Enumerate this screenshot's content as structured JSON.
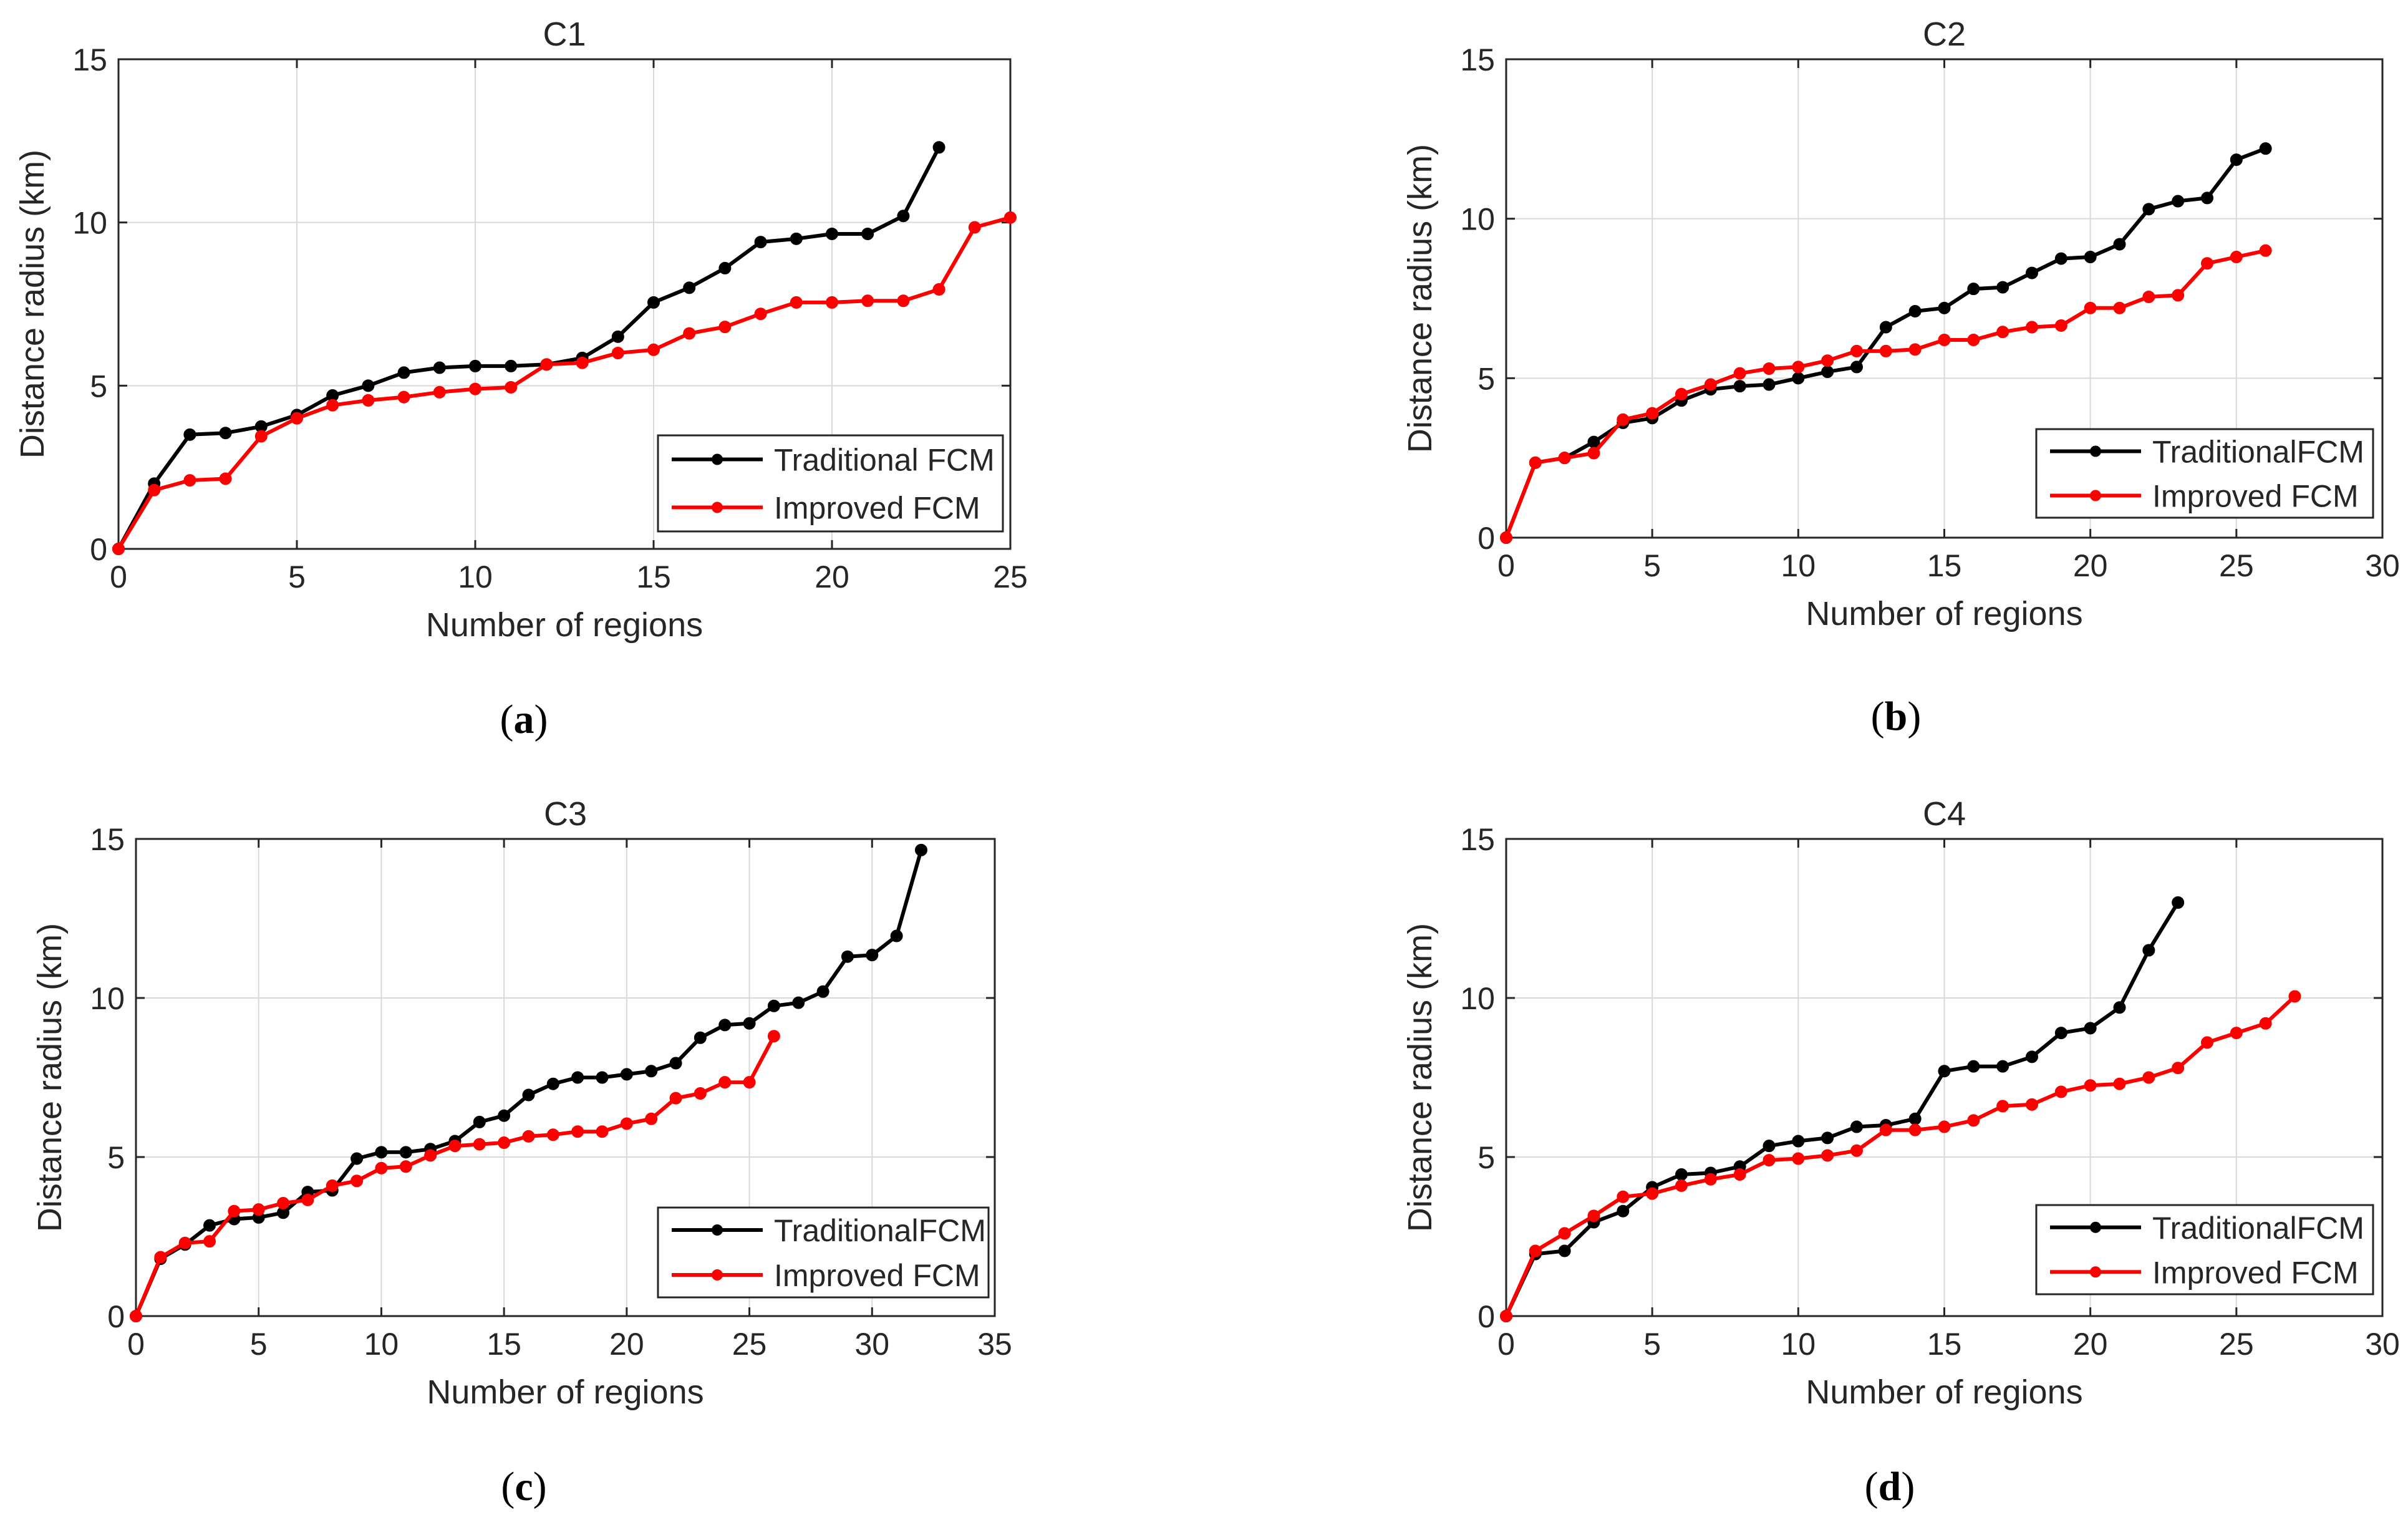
{
  "colors": {
    "traditional": "#000000",
    "improved": "#ff0000",
    "grid": "#d9d9d9",
    "axis": "#262626"
  },
  "chart_data": [
    {
      "type": "line",
      "title": "C1",
      "caption_letter": "a",
      "xlabel": "Number of regions",
      "ylabel": "Distance radius (km)",
      "xlim": [
        0,
        25
      ],
      "ylim": [
        0,
        15
      ],
      "xticks": [
        "0",
        "5",
        "10",
        "15",
        "20",
        "25"
      ],
      "yticks": [
        "0",
        "5",
        "10",
        "15"
      ],
      "grid": true,
      "legend_position": "bottom-right",
      "series": [
        {
          "name": "Traditional FCM",
          "color": "#000000",
          "x": [
            0,
            1,
            2,
            3,
            4,
            5,
            6,
            7,
            8,
            9,
            10,
            11,
            12,
            13,
            14,
            15,
            16,
            17,
            18,
            19,
            20,
            21,
            22,
            23
          ],
          "y": [
            0,
            2.0,
            3.5,
            3.55,
            3.75,
            4.1,
            4.7,
            5.0,
            5.4,
            5.55,
            5.6,
            5.6,
            5.65,
            5.85,
            6.5,
            7.55,
            8.0,
            8.6,
            9.4,
            9.5,
            9.65,
            9.65,
            10.2,
            12.3
          ]
        },
        {
          "name": "Improved FCM",
          "color": "#ff0000",
          "x": [
            0,
            1,
            2,
            3,
            4,
            5,
            6,
            7,
            8,
            9,
            10,
            11,
            12,
            13,
            14,
            15,
            16,
            17,
            18,
            19,
            20,
            21,
            22,
            23,
            24,
            25
          ],
          "y": [
            0,
            1.8,
            2.1,
            2.15,
            3.45,
            4.0,
            4.4,
            4.55,
            4.65,
            4.8,
            4.9,
            4.95,
            5.65,
            5.7,
            6.0,
            6.1,
            6.6,
            6.8,
            7.2,
            7.55,
            7.55,
            7.6,
            7.6,
            7.95,
            9.85,
            10.15
          ]
        }
      ]
    },
    {
      "type": "line",
      "title": "C2",
      "caption_letter": "b",
      "xlabel": "Number of regions",
      "ylabel": "Distance radius (km)",
      "xlim": [
        0,
        30
      ],
      "ylim": [
        0,
        15
      ],
      "xticks": [
        "0",
        "5",
        "10",
        "15",
        "20",
        "25",
        "30"
      ],
      "yticks": [
        "0",
        "5",
        "10",
        "15"
      ],
      "grid": true,
      "legend_position": "bottom-right",
      "series": [
        {
          "name": "TraditionalFCM",
          "color": "#000000",
          "x": [
            0,
            1,
            2,
            3,
            4,
            5,
            6,
            7,
            8,
            9,
            10,
            11,
            12,
            13,
            14,
            15,
            16,
            17,
            18,
            19,
            20,
            21,
            22,
            23,
            24,
            25,
            26
          ],
          "y": [
            0,
            2.35,
            2.5,
            3.0,
            3.6,
            3.75,
            4.3,
            4.65,
            4.75,
            4.8,
            5.0,
            5.2,
            5.35,
            6.6,
            7.1,
            7.2,
            7.8,
            7.85,
            8.3,
            8.75,
            8.8,
            9.2,
            10.3,
            10.55,
            10.65,
            11.85,
            12.2
          ]
        },
        {
          "name": "Improved FCM",
          "color": "#ff0000",
          "x": [
            0,
            1,
            2,
            3,
            4,
            5,
            6,
            7,
            8,
            9,
            10,
            11,
            12,
            13,
            14,
            15,
            16,
            17,
            18,
            19,
            20,
            21,
            22,
            23,
            24,
            25,
            26
          ],
          "y": [
            0,
            2.35,
            2.5,
            2.65,
            3.7,
            3.9,
            4.5,
            4.8,
            5.15,
            5.3,
            5.35,
            5.55,
            5.85,
            5.85,
            5.9,
            6.2,
            6.2,
            6.45,
            6.6,
            6.65,
            7.2,
            7.2,
            7.55,
            7.6,
            8.6,
            8.8,
            9.0
          ]
        }
      ]
    },
    {
      "type": "line",
      "title": "C3",
      "caption_letter": "c",
      "xlabel": "Number of regions",
      "ylabel": "Distance radius (km)",
      "xlim": [
        0,
        35
      ],
      "ylim": [
        0,
        15
      ],
      "xticks": [
        "0",
        "5",
        "10",
        "15",
        "20",
        "25",
        "30",
        "35"
      ],
      "yticks": [
        "0",
        "5",
        "10",
        "15"
      ],
      "grid": true,
      "legend_position": "bottom-right",
      "series": [
        {
          "name": "TraditionalFCM",
          "color": "#000000",
          "x": [
            0,
            1,
            2,
            3,
            4,
            5,
            6,
            7,
            8,
            9,
            10,
            11,
            12,
            13,
            14,
            15,
            16,
            17,
            18,
            19,
            20,
            21,
            22,
            23,
            24,
            25,
            26,
            27,
            28,
            29,
            30,
            31,
            32
          ],
          "y": [
            0,
            1.8,
            2.25,
            2.85,
            3.05,
            3.1,
            3.25,
            3.9,
            3.95,
            4.95,
            5.15,
            5.15,
            5.25,
            5.5,
            6.1,
            6.3,
            6.95,
            7.3,
            7.5,
            7.5,
            7.6,
            7.7,
            7.95,
            8.75,
            9.15,
            9.2,
            9.75,
            9.85,
            10.2,
            11.3,
            11.35,
            11.95,
            14.65
          ]
        },
        {
          "name": "Improved FCM",
          "color": "#ff0000",
          "x": [
            0,
            1,
            2,
            3,
            4,
            5,
            6,
            7,
            8,
            9,
            10,
            11,
            12,
            13,
            14,
            15,
            16,
            17,
            18,
            19,
            20,
            21,
            22,
            23,
            24,
            25,
            26
          ],
          "y": [
            0,
            1.85,
            2.3,
            2.35,
            3.3,
            3.35,
            3.55,
            3.65,
            4.1,
            4.25,
            4.65,
            4.7,
            5.05,
            5.35,
            5.4,
            5.45,
            5.65,
            5.7,
            5.8,
            5.8,
            6.05,
            6.2,
            6.85,
            7.0,
            7.35,
            7.35,
            8.8
          ]
        }
      ]
    },
    {
      "type": "line",
      "title": "C4",
      "caption_letter": "d",
      "xlabel": "Number of regions",
      "ylabel": "Distance radius (km)",
      "xlim": [
        0,
        30
      ],
      "ylim": [
        0,
        15
      ],
      "xticks": [
        "0",
        "5",
        "10",
        "15",
        "20",
        "25",
        "30"
      ],
      "yticks": [
        "0",
        "5",
        "10",
        "15"
      ],
      "grid": true,
      "legend_position": "bottom-right",
      "series": [
        {
          "name": "TraditionalFCM",
          "color": "#000000",
          "x": [
            0,
            1,
            2,
            3,
            4,
            5,
            6,
            7,
            8,
            9,
            10,
            11,
            12,
            13,
            14,
            15,
            16,
            17,
            18,
            19,
            20,
            21,
            22,
            23
          ],
          "y": [
            0,
            1.95,
            2.05,
            2.95,
            3.3,
            4.05,
            4.45,
            4.5,
            4.7,
            5.35,
            5.5,
            5.6,
            5.95,
            6.0,
            6.2,
            7.7,
            7.85,
            7.85,
            8.15,
            8.9,
            9.05,
            9.7,
            11.5,
            13.0
          ]
        },
        {
          "name": "Improved FCM",
          "color": "#ff0000",
          "x": [
            0,
            1,
            2,
            3,
            4,
            5,
            6,
            7,
            8,
            9,
            10,
            11,
            12,
            13,
            14,
            15,
            16,
            17,
            18,
            19,
            20,
            21,
            22,
            23,
            24,
            25,
            26,
            27
          ],
          "y": [
            0,
            2.05,
            2.6,
            3.15,
            3.75,
            3.85,
            4.1,
            4.3,
            4.45,
            4.9,
            4.95,
            5.05,
            5.2,
            5.85,
            5.85,
            5.95,
            6.15,
            6.6,
            6.65,
            7.05,
            7.25,
            7.3,
            7.5,
            7.8,
            8.6,
            8.9,
            9.2,
            10.05
          ]
        }
      ]
    }
  ]
}
